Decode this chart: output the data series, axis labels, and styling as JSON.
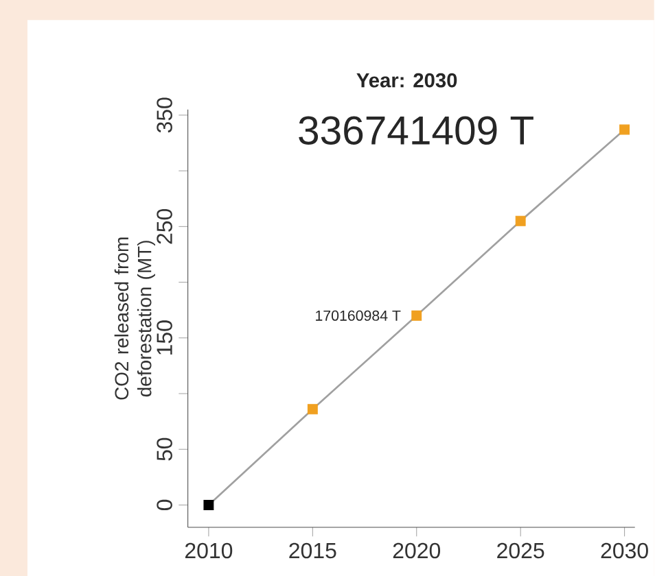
{
  "chart_data": {
    "type": "line",
    "title": "Year: 2030",
    "subtitle": "336741409 T",
    "ylabel": "CO2 released from deforestation (MT)",
    "xlim": [
      2009,
      2030.5
    ],
    "ylim": [
      -20,
      355
    ],
    "xticks": [
      2010,
      2015,
      2020,
      2025,
      2030
    ],
    "yticks": [
      0,
      50,
      {
        "value": 100,
        "label": null
      },
      150,
      {
        "value": 200,
        "label": null
      },
      250,
      {
        "value": 300,
        "label": null
      },
      350
    ],
    "series": [
      {
        "color": "#a0a0a0",
        "marker": "none",
        "x": [
          2010,
          2015,
          2020,
          2025,
          2030
        ],
        "values": [
          0,
          86,
          170,
          255,
          337
        ]
      },
      {
        "type": "scatter",
        "marker": "square",
        "colors": [
          "#000000",
          "#f0a020",
          "#f0a020",
          "#f0a020",
          "#f0a020"
        ],
        "x": [
          2010,
          2015,
          2020,
          2025,
          2030
        ],
        "values": [
          0,
          86,
          170,
          255,
          337
        ]
      }
    ],
    "annotations": [
      {
        "text": "170160984 T",
        "x": 2020,
        "y": 170
      }
    ]
  }
}
